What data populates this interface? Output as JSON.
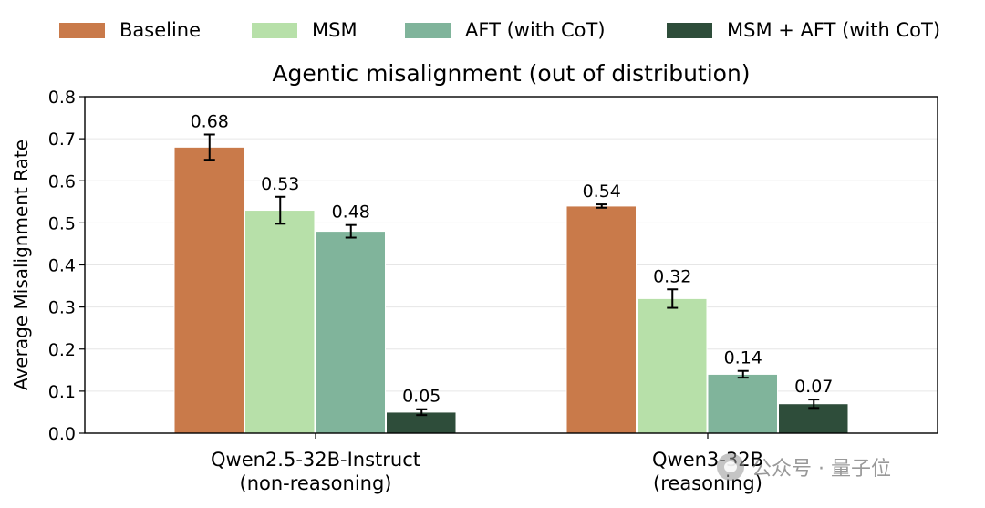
{
  "legend": {
    "items": [
      {
        "label": "Baseline",
        "color": "#c97a4a"
      },
      {
        "label": "MSM",
        "color": "#b7e0a9"
      },
      {
        "label": "AFT (with CoT)",
        "color": "#80b49b"
      },
      {
        "label": "MSM + AFT (with CoT)",
        "color": "#2e4d3a"
      }
    ]
  },
  "watermark": {
    "text": "公众号 · 量子位"
  },
  "chart_data": {
    "type": "bar",
    "title": "Agentic misalignment (out of distribution)",
    "xlabel": "",
    "ylabel": "Average Misalignment Rate",
    "ylim": [
      0,
      0.8
    ],
    "yticks": [
      "0.0",
      "0.1",
      "0.2",
      "0.3",
      "0.4",
      "0.5",
      "0.6",
      "0.7",
      "0.8"
    ],
    "grid": true,
    "legend_position": "top",
    "categories": [
      [
        "Qwen2.5-32B-Instruct",
        "(non-reasoning)"
      ],
      [
        "Qwen3-32B",
        "(reasoning)"
      ]
    ],
    "series": [
      {
        "name": "Baseline",
        "color": "#c97a4a",
        "values": [
          0.68,
          0.54
        ],
        "errors": [
          0.03,
          0.004
        ],
        "labels": [
          "0.68",
          "0.54"
        ]
      },
      {
        "name": "MSM",
        "color": "#b7e0a9",
        "values": [
          0.53,
          0.32
        ],
        "errors": [
          0.032,
          0.022
        ],
        "labels": [
          "0.53",
          "0.32"
        ]
      },
      {
        "name": "AFT (with CoT)",
        "color": "#80b49b",
        "values": [
          0.48,
          0.14
        ],
        "errors": [
          0.015,
          0.008
        ],
        "labels": [
          "0.48",
          "0.14"
        ]
      },
      {
        "name": "MSM + AFT (with CoT)",
        "color": "#2e4d3a",
        "values": [
          0.05,
          0.07
        ],
        "errors": [
          0.007,
          0.01
        ],
        "labels": [
          "0.05",
          "0.07"
        ]
      }
    ]
  }
}
